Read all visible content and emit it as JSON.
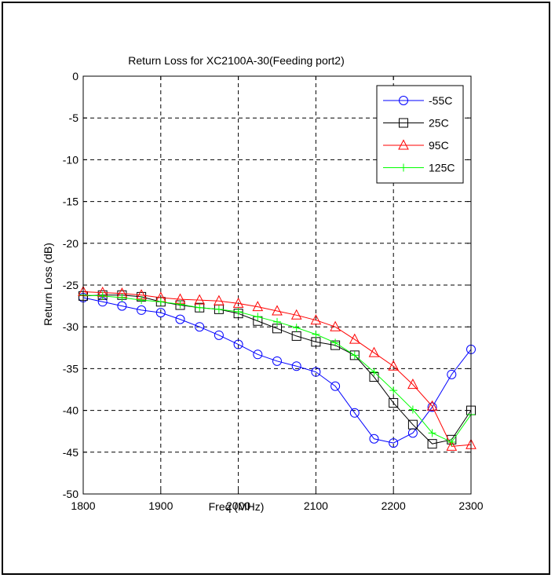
{
  "chart_data": {
    "type": "line",
    "title": "Return Loss for XC2100A-30(Feeding port2)",
    "xlabel": "Freq (MHz)",
    "ylabel": "Return Loss (dB)",
    "xlim": [
      1800,
      2300
    ],
    "ylim": [
      -50,
      0
    ],
    "xticks": [
      1800,
      1900,
      2000,
      2100,
      2200,
      2300
    ],
    "yticks": [
      0,
      -5,
      -10,
      -15,
      -20,
      -25,
      -30,
      -35,
      -40,
      -45,
      -50
    ],
    "grid": true,
    "legend_position": "top-right",
    "x": [
      1800,
      1825,
      1850,
      1875,
      1900,
      1925,
      1950,
      1975,
      2000,
      2025,
      2050,
      2075,
      2100,
      2125,
      2150,
      2175,
      2200,
      2225,
      2250,
      2275,
      2300
    ],
    "series": [
      {
        "name": "-55C",
        "color": "#0000ff",
        "marker": "circle",
        "values": [
          -26.5,
          -27.0,
          -27.5,
          -28.0,
          -28.3,
          -29.1,
          -30.0,
          -31.0,
          -32.1,
          -33.3,
          -34.1,
          -34.7,
          -35.4,
          -37.1,
          -40.3,
          -43.4,
          -43.9,
          -42.7,
          -39.6,
          -35.7,
          -32.7
        ]
      },
      {
        "name": "25C",
        "color": "#000000",
        "marker": "square",
        "values": [
          -26.3,
          -26.2,
          -26.2,
          -26.4,
          -27.0,
          -27.4,
          -27.7,
          -27.9,
          -28.4,
          -29.3,
          -30.2,
          -31.1,
          -31.8,
          -32.2,
          -33.4,
          -36.0,
          -39.1,
          -41.7,
          -44.0,
          -43.5,
          -40.0
        ]
      },
      {
        "name": "95C",
        "color": "#ff0000",
        "marker": "triangle",
        "values": [
          -25.8,
          -25.9,
          -26.0,
          -26.2,
          -26.5,
          -26.7,
          -26.8,
          -26.9,
          -27.2,
          -27.6,
          -28.1,
          -28.6,
          -29.2,
          -30.0,
          -31.5,
          -33.1,
          -34.7,
          -36.9,
          -39.5,
          -44.3,
          -44.1
        ]
      },
      {
        "name": "125C",
        "color": "#00ff00",
        "marker": "plus",
        "values": [
          -26.2,
          -26.3,
          -26.5,
          -26.8,
          -27.0,
          -27.3,
          -27.7,
          -27.9,
          -28.2,
          -28.8,
          -29.4,
          -30.1,
          -30.9,
          -31.9,
          -33.4,
          -35.4,
          -37.6,
          -39.9,
          -42.7,
          -43.8,
          -40.5
        ]
      }
    ]
  }
}
